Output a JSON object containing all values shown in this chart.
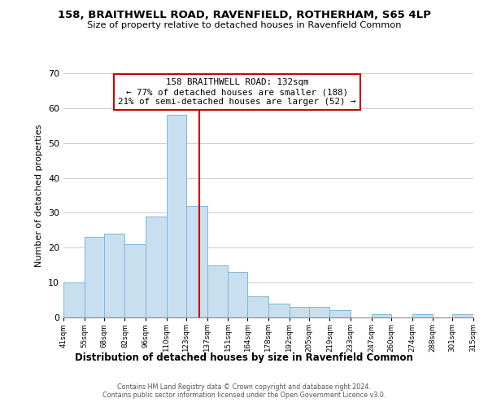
{
  "title1": "158, BRAITHWELL ROAD, RAVENFIELD, ROTHERHAM, S65 4LP",
  "title2": "Size of property relative to detached houses in Ravenfield Common",
  "xlabel": "Distribution of detached houses by size in Ravenfield Common",
  "ylabel": "Number of detached properties",
  "bar_edges": [
    41,
    55,
    68,
    82,
    96,
    110,
    123,
    137,
    151,
    164,
    178,
    192,
    205,
    219,
    233,
    247,
    260,
    274,
    288,
    301,
    315
  ],
  "bar_heights": [
    10,
    23,
    24,
    21,
    29,
    58,
    32,
    15,
    13,
    6,
    4,
    3,
    3,
    2,
    0,
    1,
    0,
    1,
    0,
    1
  ],
  "bar_color": "#c8dff0",
  "bar_edge_color": "#7bb8d9",
  "vline_x": 132,
  "vline_color": "#cc0000",
  "annotation_line1": "158 BRAITHWELL ROAD: 132sqm",
  "annotation_line2": "← 77% of detached houses are smaller (188)",
  "annotation_line3": "21% of semi-detached houses are larger (52) →",
  "annotation_box_edge": "#cc0000",
  "ylim": [
    0,
    70
  ],
  "yticks": [
    0,
    10,
    20,
    30,
    40,
    50,
    60,
    70
  ],
  "tick_labels": [
    "41sqm",
    "55sqm",
    "68sqm",
    "82sqm",
    "96sqm",
    "110sqm",
    "123sqm",
    "137sqm",
    "151sqm",
    "164sqm",
    "178sqm",
    "192sqm",
    "205sqm",
    "219sqm",
    "233sqm",
    "247sqm",
    "260sqm",
    "274sqm",
    "288sqm",
    "301sqm",
    "315sqm"
  ],
  "footnote": "Contains HM Land Registry data © Crown copyright and database right 2024.\nContains public sector information licensed under the Open Government Licence v3.0."
}
